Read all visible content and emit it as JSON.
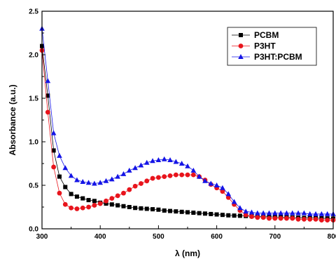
{
  "chart_data": {
    "type": "line",
    "title": "",
    "xlabel": "λ (nm)",
    "ylabel": "Absorbance (a.u.)",
    "xlim": [
      300,
      800
    ],
    "ylim": [
      0.0,
      2.5
    ],
    "x_ticks": [
      300,
      400,
      500,
      600,
      700,
      800
    ],
    "x_tick_labels": [
      "300",
      "400",
      "500",
      "600",
      "700",
      "800"
    ],
    "y_ticks": [
      0.0,
      0.5,
      1.0,
      1.5,
      2.0,
      2.5
    ],
    "y_tick_labels": [
      "0.0",
      "0.5",
      "1.0",
      "1.5",
      "2.0",
      "2.5"
    ],
    "grid": false,
    "legend_position": "top-right",
    "x": [
      300,
      310,
      320,
      330,
      340,
      350,
      360,
      370,
      380,
      390,
      400,
      410,
      420,
      430,
      440,
      450,
      460,
      470,
      480,
      490,
      500,
      510,
      520,
      530,
      540,
      550,
      560,
      570,
      580,
      590,
      600,
      610,
      620,
      630,
      640,
      650,
      660,
      670,
      680,
      690,
      700,
      710,
      720,
      730,
      740,
      750,
      760,
      770,
      780,
      790,
      800
    ],
    "series": [
      {
        "name": "PCBM",
        "marker": "square",
        "color": "#000000",
        "values": [
          2.1,
          1.53,
          0.9,
          0.6,
          0.48,
          0.4,
          0.37,
          0.35,
          0.33,
          0.32,
          0.3,
          0.29,
          0.28,
          0.27,
          0.26,
          0.25,
          0.24,
          0.235,
          0.23,
          0.225,
          0.22,
          0.21,
          0.205,
          0.2,
          0.195,
          0.19,
          0.185,
          0.18,
          0.175,
          0.17,
          0.165,
          0.16,
          0.155,
          0.152,
          0.15,
          0.147,
          0.145,
          0.142,
          0.14,
          0.138,
          0.136,
          0.134,
          0.132,
          0.13,
          0.128,
          0.126,
          0.125,
          0.123,
          0.121,
          0.12,
          0.118
        ]
      },
      {
        "name": "P3HT",
        "marker": "circle",
        "color": "#e8141c",
        "values": [
          2.05,
          1.34,
          0.71,
          0.41,
          0.28,
          0.24,
          0.23,
          0.24,
          0.25,
          0.27,
          0.29,
          0.32,
          0.35,
          0.38,
          0.41,
          0.45,
          0.49,
          0.52,
          0.55,
          0.58,
          0.59,
          0.6,
          0.61,
          0.62,
          0.62,
          0.62,
          0.62,
          0.6,
          0.56,
          0.51,
          0.47,
          0.43,
          0.36,
          0.28,
          0.21,
          0.16,
          0.14,
          0.13,
          0.13,
          0.12,
          0.12,
          0.12,
          0.12,
          0.12,
          0.11,
          0.11,
          0.11,
          0.11,
          0.1,
          0.1,
          0.1
        ]
      },
      {
        "name": "P3HT:PCBM",
        "marker": "triangle",
        "color": "#1414e6",
        "values": [
          2.3,
          1.7,
          1.1,
          0.84,
          0.7,
          0.61,
          0.56,
          0.54,
          0.53,
          0.52,
          0.53,
          0.55,
          0.57,
          0.6,
          0.63,
          0.67,
          0.7,
          0.73,
          0.76,
          0.78,
          0.79,
          0.8,
          0.79,
          0.77,
          0.75,
          0.72,
          0.67,
          0.6,
          0.55,
          0.52,
          0.5,
          0.47,
          0.4,
          0.31,
          0.24,
          0.2,
          0.19,
          0.18,
          0.18,
          0.18,
          0.18,
          0.18,
          0.18,
          0.18,
          0.18,
          0.18,
          0.17,
          0.17,
          0.17,
          0.17,
          0.17
        ]
      }
    ]
  }
}
